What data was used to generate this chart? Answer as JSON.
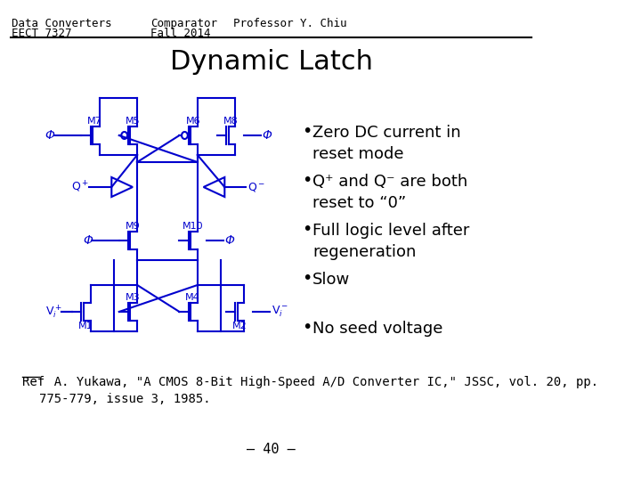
{
  "bg_color": "#ffffff",
  "header_left_line1": "Data Converters",
  "header_left_line2": "EECT 7327",
  "header_center_line1": "Comparator",
  "header_center_line2": "Fall 2014",
  "header_right_line1": "Professor Y. Chiu",
  "title": "Dynamic Latch",
  "bullet_points": [
    "Zero DC current in\nreset mode",
    "Q⁺ and Q⁻ are both\nreset to “0”",
    "Full logic level after\nregeneration",
    "Slow",
    "No seed voltage"
  ],
  "ref_label": "Ref",
  "ref_text": "  A. Yukawa, \"A CMOS 8-Bit High-Speed A/D Converter IC,\" JSSC, vol. 20, pp.\n775-779, issue 3, 1985.",
  "page_number": "– 40 –",
  "circuit_color": "#0000cd",
  "line_color": "#000000",
  "header_fontsize": 9,
  "title_fontsize": 22,
  "bullet_fontsize": 13,
  "ref_fontsize": 10,
  "page_fontsize": 11
}
